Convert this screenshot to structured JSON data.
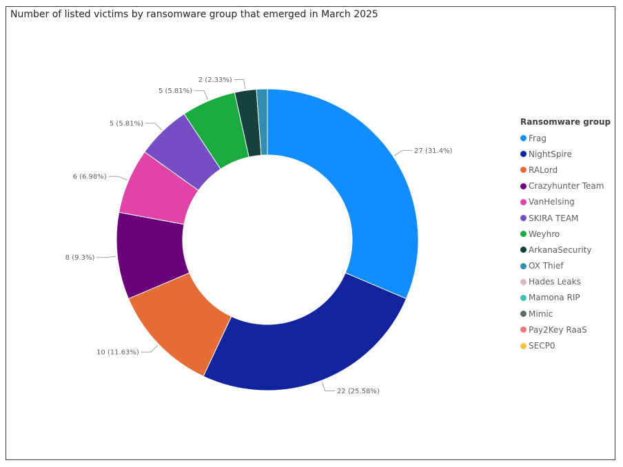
{
  "chart_data": {
    "type": "donut",
    "title": "Number of listed victims by ransomware group that emerged in March 2025",
    "legend_title": "Ransomware group",
    "legend_position": "right",
    "slices": [
      {
        "name": "Frag",
        "value": 27,
        "label": "27 (31.4%)",
        "color": "#118DFF"
      },
      {
        "name": "NightSpire",
        "value": 22,
        "label": "22 (25.58%)",
        "color": "#12239E"
      },
      {
        "name": "RALord",
        "value": 10,
        "label": "10 (11.63%)",
        "color": "#E66C37"
      },
      {
        "name": "Crazyhunter Team",
        "value": 8,
        "label": "8 (9.3%)",
        "color": "#6B007B"
      },
      {
        "name": "VanHelsing",
        "value": 6,
        "label": "6 (6.98%)",
        "color": "#E044A7"
      },
      {
        "name": "SKIRA TEAM",
        "value": 5,
        "label": "5 (5.81%)",
        "color": "#744EC2"
      },
      {
        "name": "Weyhro",
        "value": 5,
        "label": "5 (5.81%)",
        "color": "#1AAB40"
      },
      {
        "name": "ArkanaSecurity",
        "value": 2,
        "label": "2 (2.33%)",
        "color": "#15403B"
      },
      {
        "name": "OX Thief",
        "value": 1,
        "label": "",
        "color": "#2F8FAF"
      },
      {
        "name": "Hades Leaks",
        "value": 0,
        "label": "",
        "color": "#D9B8C4"
      },
      {
        "name": "Mamona RIP",
        "value": 0,
        "label": "",
        "color": "#3FBFB5"
      },
      {
        "name": "Mimic",
        "value": 0,
        "label": "",
        "color": "#5F6B6D"
      },
      {
        "name": "Pay2Key RaaS",
        "value": 0,
        "label": "",
        "color": "#F07A7A"
      },
      {
        "name": "SECP0",
        "value": 0,
        "label": "",
        "color": "#F5C343"
      }
    ]
  }
}
